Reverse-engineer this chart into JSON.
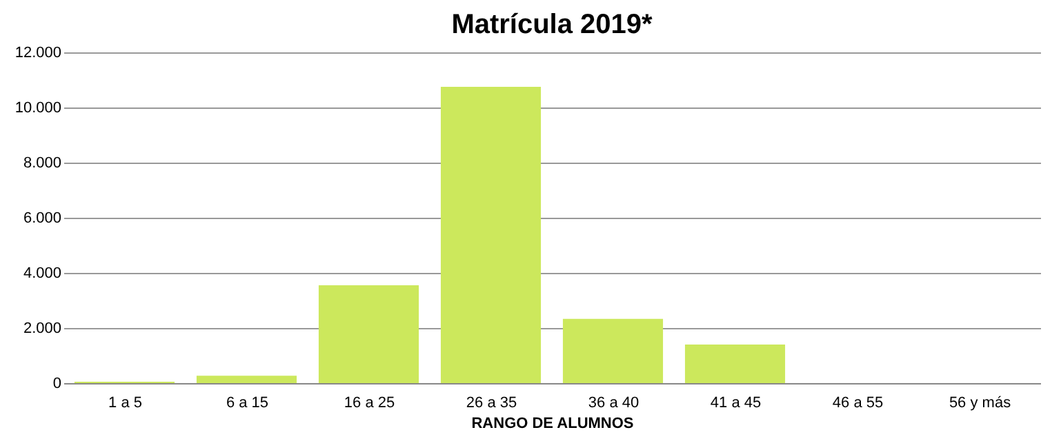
{
  "chart_data": {
    "type": "bar",
    "title": "Matrícula 2019*",
    "xlabel": "RANGO DE ALUMNOS",
    "categories": [
      "1 a 5",
      "6 a 15",
      "16 a 25",
      "26 a 35",
      "36 a 40",
      "41 a 45",
      "46 a 55",
      "56 y más"
    ],
    "values": [
      50,
      270,
      3550,
      10750,
      2330,
      1400,
      0,
      0
    ],
    "color": "#cce85c",
    "ylim": [
      0,
      12000
    ],
    "yticks": [
      0,
      {
        "value": 2000,
        "label": "2.000"
      },
      {
        "value": 4000,
        "label": "4.000"
      },
      {
        "value": 6000,
        "label": "6.000"
      },
      {
        "value": 8000,
        "label": "8.000"
      },
      {
        "value": 10000,
        "label": "10.000"
      },
      {
        "value": 12000,
        "label": "12.000"
      }
    ],
    "grid": "y"
  }
}
